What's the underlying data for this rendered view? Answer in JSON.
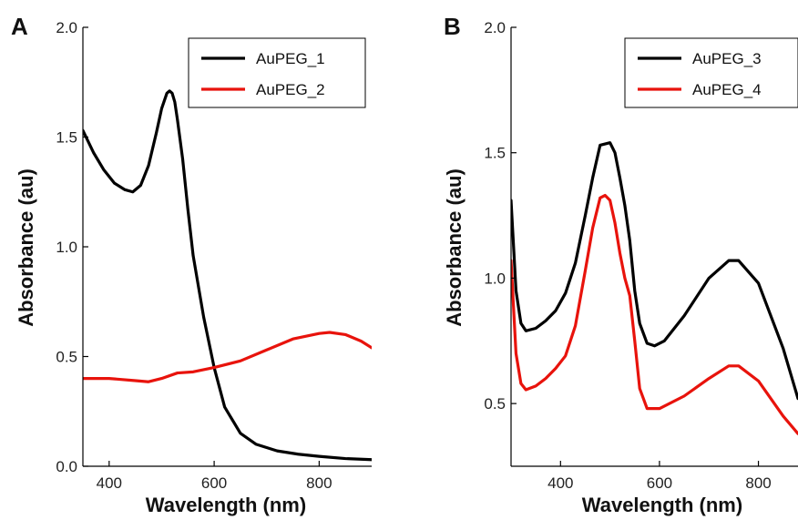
{
  "chart_data": [
    {
      "panel": "A",
      "type": "line",
      "xlabel": "Wavelength (nm)",
      "ylabel": "Absorbance (au)",
      "xlim": [
        350,
        900
      ],
      "ylim": [
        0.0,
        2.0
      ],
      "xticks": [
        400,
        600,
        800
      ],
      "yticks": [
        "0.0",
        "0.5",
        "1.0",
        "1.5",
        "2.0"
      ],
      "legend_position": "top-right",
      "series": [
        {
          "name": "AuPEG_1",
          "color": "#000000",
          "x": [
            350,
            370,
            390,
            410,
            430,
            445,
            460,
            475,
            490,
            500,
            510,
            515,
            520,
            525,
            530,
            540,
            550,
            560,
            580,
            600,
            620,
            650,
            680,
            720,
            760,
            800,
            850,
            900
          ],
          "y": [
            1.53,
            1.43,
            1.35,
            1.29,
            1.26,
            1.25,
            1.28,
            1.37,
            1.52,
            1.63,
            1.7,
            1.71,
            1.7,
            1.66,
            1.58,
            1.4,
            1.17,
            0.96,
            0.68,
            0.45,
            0.27,
            0.15,
            0.1,
            0.07,
            0.055,
            0.045,
            0.035,
            0.03
          ]
        },
        {
          "name": "AuPEG_2",
          "color": "#e8130c",
          "x": [
            350,
            400,
            450,
            475,
            500,
            530,
            560,
            600,
            650,
            700,
            750,
            800,
            820,
            850,
            880,
            900
          ],
          "y": [
            0.4,
            0.4,
            0.39,
            0.385,
            0.4,
            0.425,
            0.43,
            0.45,
            0.48,
            0.53,
            0.58,
            0.605,
            0.61,
            0.6,
            0.57,
            0.54
          ]
        }
      ]
    },
    {
      "panel": "B",
      "type": "line",
      "xlabel": "Wavelength (nm)",
      "ylabel": "Absorbance (au)",
      "xlim": [
        300,
        880
      ],
      "ylim": [
        0.25,
        2.0
      ],
      "xticks": [
        400,
        600,
        800
      ],
      "yticks": [
        "0.5",
        "1.0",
        "1.5",
        "2.0"
      ],
      "legend_position": "top-right",
      "series": [
        {
          "name": "AuPEG_3",
          "color": "#000000",
          "x": [
            300,
            310,
            320,
            330,
            350,
            370,
            390,
            410,
            430,
            450,
            465,
            480,
            500,
            510,
            520,
            530,
            540,
            550,
            560,
            575,
            590,
            610,
            650,
            700,
            740,
            760,
            800,
            850,
            880
          ],
          "y": [
            1.31,
            0.95,
            0.82,
            0.79,
            0.8,
            0.83,
            0.87,
            0.94,
            1.06,
            1.25,
            1.4,
            1.53,
            1.54,
            1.5,
            1.4,
            1.29,
            1.15,
            0.95,
            0.82,
            0.74,
            0.73,
            0.75,
            0.85,
            1.0,
            1.07,
            1.07,
            0.98,
            0.72,
            0.52
          ]
        },
        {
          "name": "AuPEG_4",
          "color": "#e8130c",
          "x": [
            300,
            310,
            320,
            330,
            350,
            370,
            390,
            410,
            430,
            450,
            465,
            480,
            490,
            500,
            510,
            520,
            530,
            540,
            550,
            560,
            575,
            600,
            650,
            700,
            740,
            760,
            800,
            850,
            880
          ],
          "y": [
            1.07,
            0.7,
            0.58,
            0.555,
            0.57,
            0.6,
            0.64,
            0.69,
            0.81,
            1.03,
            1.2,
            1.32,
            1.33,
            1.31,
            1.22,
            1.1,
            1.0,
            0.93,
            0.75,
            0.56,
            0.48,
            0.48,
            0.53,
            0.6,
            0.65,
            0.65,
            0.59,
            0.45,
            0.38
          ]
        }
      ]
    }
  ]
}
